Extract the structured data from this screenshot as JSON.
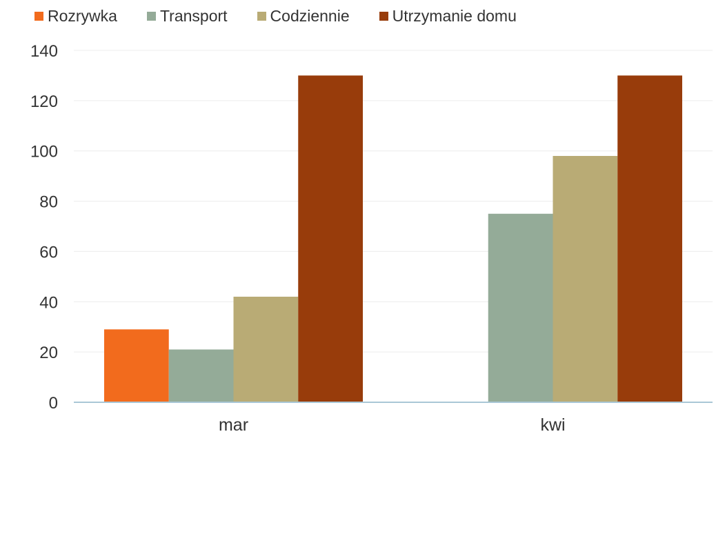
{
  "chart_data": {
    "type": "bar",
    "categories": [
      "mar",
      "kwi"
    ],
    "series": [
      {
        "name": "Rozrywka",
        "color": "#f26b1d",
        "values": [
          29,
          null
        ]
      },
      {
        "name": "Transport",
        "color": "#94ab98",
        "values": [
          21,
          75
        ]
      },
      {
        "name": "Codziennie",
        "color": "#b9ab75",
        "values": [
          42,
          98
        ]
      },
      {
        "name": "Utrzymanie domu",
        "color": "#983c0b",
        "values": [
          130,
          130
        ]
      }
    ],
    "ylim": [
      0,
      140
    ],
    "yticks": [
      "0",
      "20",
      "40",
      "60",
      "80",
      "100",
      "120",
      "140"
    ],
    "ytick_values": [
      0,
      20,
      40,
      60,
      80,
      100,
      120,
      140
    ],
    "grid": true,
    "legend": "top-left",
    "title": "",
    "xlabel": "",
    "ylabel": ""
  }
}
